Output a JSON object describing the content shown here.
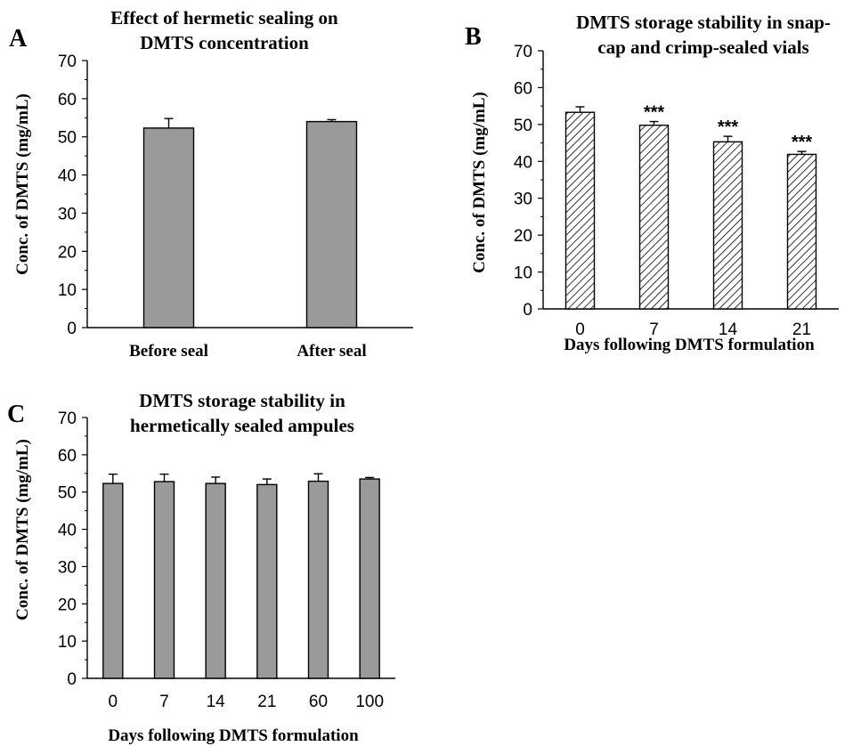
{
  "chart_data": [
    {
      "panel": "A",
      "type": "bar",
      "title": "Effect of hermetic sealing on DMTS concentration",
      "title_lines": [
        "Effect of hermetic sealing on",
        "DMTS concentration"
      ],
      "xlabel": "",
      "ylabel": "Conc. of DMTS (mg/mL)",
      "categories": [
        "Before seal",
        "After seal"
      ],
      "values": [
        52.3,
        54.0
      ],
      "errors": [
        2.5,
        0.5
      ],
      "ylim": [
        0,
        70
      ],
      "yticks": [
        "0",
        "10",
        "20",
        "30",
        "40",
        "50",
        "60",
        "70"
      ],
      "annotations": [
        "",
        ""
      ],
      "bar_fill": "solid",
      "bar_color": "#9a9a9a",
      "grid": false
    },
    {
      "panel": "B",
      "type": "bar",
      "title": "DMTS storage stability in snap-cap and crimp-sealed vials",
      "title_lines": [
        "DMTS storage stability in snap-",
        "cap and crimp-sealed vials"
      ],
      "xlabel": "Days following DMTS formulation",
      "ylabel": "Conc. of DMTS (mg/mL)",
      "categories": [
        "0",
        "7",
        "14",
        "21"
      ],
      "values": [
        53.3,
        49.8,
        45.3,
        41.9
      ],
      "errors": [
        1.5,
        1.0,
        1.5,
        0.8
      ],
      "ylim": [
        0,
        70
      ],
      "yticks": [
        "0",
        "10",
        "20",
        "30",
        "40",
        "50",
        "60",
        "70"
      ],
      "annotations": [
        "",
        "***",
        "***",
        "***"
      ],
      "bar_fill": "hatched",
      "bar_color": "#ffffff",
      "grid": false
    },
    {
      "panel": "C",
      "type": "bar",
      "title": "DMTS storage stability in hermetically sealed ampules",
      "title_lines": [
        "DMTS storage stability in",
        "hermetically sealed ampules"
      ],
      "xlabel": "Days following DMTS formulation",
      "ylabel": "Conc. of DMTS (mg/mL)",
      "categories": [
        "0",
        "7",
        "14",
        "21",
        "60",
        "100"
      ],
      "values": [
        52.3,
        52.8,
        52.3,
        52.0,
        52.9,
        53.5
      ],
      "errors": [
        2.5,
        2.0,
        1.7,
        1.5,
        2.0,
        0.4
      ],
      "ylim": [
        0,
        70
      ],
      "yticks": [
        "0",
        "10",
        "20",
        "30",
        "40",
        "50",
        "60",
        "70"
      ],
      "annotations": [
        "",
        "",
        "",
        "",
        "",
        ""
      ],
      "bar_fill": "solid",
      "bar_color": "#9a9a9a",
      "grid": false
    }
  ]
}
